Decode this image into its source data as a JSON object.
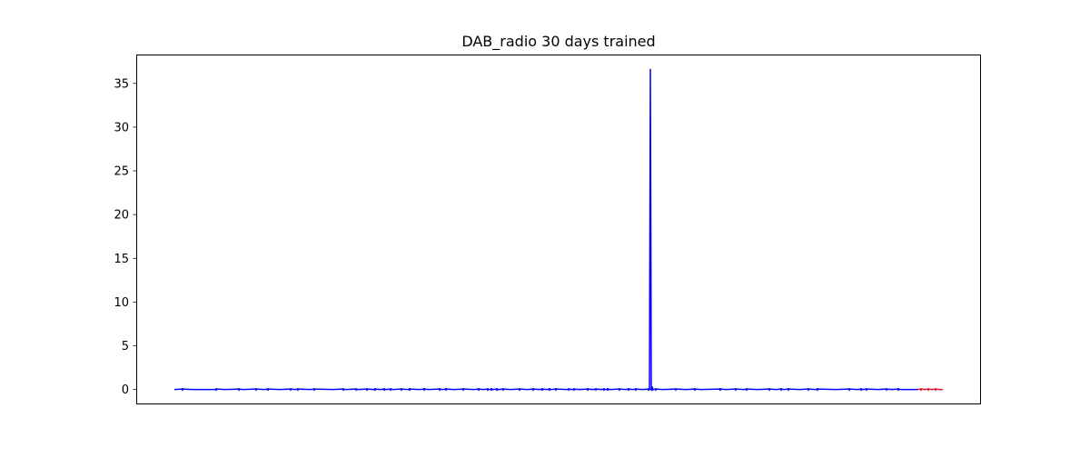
{
  "chart_data": {
    "type": "line",
    "title": "DAB_radio 30 days trained",
    "xlabel": "",
    "ylabel": "",
    "ylim": [
      -1.7,
      38.3
    ],
    "x_ticks_visible": false,
    "y_ticks": [
      0,
      5,
      10,
      15,
      20,
      25,
      30,
      35
    ],
    "y_tick_labels": [
      "0",
      "5",
      "10",
      "15",
      "20",
      "25",
      "30",
      "35"
    ],
    "grid": false,
    "legend": "none",
    "series": [
      {
        "color": "#0000ff",
        "x": [
          0,
          9,
          20,
          45,
          46,
          56,
          71,
          75,
          90,
          99,
          103,
          116,
          128,
          133,
          136,
          150,
          154,
          174,
          186,
          188,
          200,
          202,
          212,
          219,
          221,
          227,
          231,
          233,
          238,
          241,
          250,
          257,
          259,
          270,
          275,
          280,
          292,
          295,
          299,
          308,
          318,
          330,
          335,
          340,
          345,
          346,
          349,
          351,
          355,
          357,
          362,
          370,
          380,
          389,
          395,
          402,
          405,
          410,
          413,
          415,
          420,
          432,
          434,
          438,
          440,
          446,
          455,
          461,
          464,
          470,
          473,
          475,
          477,
          480,
          490,
          497,
          500,
          505,
          508,
          515,
          522,
          524,
          526,
          527,
          530,
          538,
          552,
          563,
          573,
          580,
          601,
          607,
          618,
          627,
          630,
          642,
          655,
          662,
          668,
          671,
          676,
          688,
          698,
          706,
          708,
          728,
          743,
          752,
          756,
          758,
          762,
          775,
          784,
          790,
          797,
          800,
          818
        ],
        "y": [
          0,
          0.05,
          0,
          0,
          0.05,
          0,
          0.05,
          0,
          0.05,
          0,
          0.05,
          0,
          0.05,
          0,
          0.05,
          0,
          0.05,
          0,
          0.05,
          0,
          0.05,
          0,
          0.05,
          0,
          0.05,
          0,
          0.05,
          0,
          0.05,
          0,
          0.05,
          0,
          0.05,
          0,
          0.05,
          0,
          0.05,
          0,
          0.05,
          0,
          0.05,
          0,
          0.05,
          0,
          0.05,
          0,
          0.05,
          0,
          0.05,
          0,
          0.05,
          0,
          0.05,
          0,
          0.05,
          0,
          0.05,
          0,
          0.05,
          0,
          0.05,
          0,
          0.05,
          0,
          0.05,
          0,
          0.05,
          0,
          0.05,
          0,
          0.05,
          0,
          0.05,
          0,
          0.05,
          0,
          0.05,
          0,
          0.05,
          0,
          0.05,
          0,
          0.05,
          0,
          0.05,
          0,
          0.05,
          0,
          0.05,
          0,
          0.05,
          0,
          0.05,
          0,
          0.05,
          0,
          0.05,
          0,
          0.05,
          0,
          0.05,
          0,
          0.05,
          0,
          0.05,
          0,
          0.05,
          0,
          0.05,
          0,
          0.05,
          0,
          0.05,
          0,
          0.05,
          0,
          0
        ]
      },
      {
        "color": "#0000ff",
        "x": [
          523,
          524,
          525,
          526,
          527
        ],
        "y": [
          0,
          36.6,
          0,
          0.3,
          0
        ]
      },
      {
        "color": "#dc143c",
        "x": [
          818,
          822,
          826,
          830,
          834,
          838,
          842,
          846
        ],
        "y": [
          0,
          0.05,
          0,
          0.05,
          0,
          0.05,
          0,
          0
        ]
      }
    ]
  }
}
